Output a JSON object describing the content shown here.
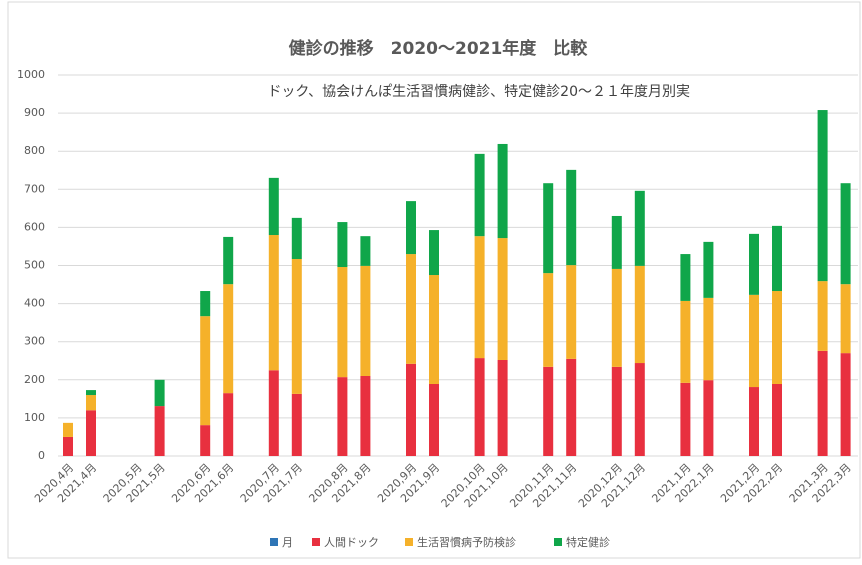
{
  "chart_data": {
    "type": "stacked_bar",
    "title": "健診の推移　2020～2021年度　比較",
    "subtitle": "ドック、協会けんぽ生活習慣病健診、特定健診20～２１年度月別実",
    "categories": [
      "2020,4月",
      "2021,4月",
      "2020,5月",
      "2021,5月",
      "2020,6月",
      "2021,6月",
      "2020,7月",
      "2021,7月",
      "2020,8月",
      "2021,8月",
      "2020,9月",
      "2021,9月",
      "2020,10月",
      "2021,10月",
      "2020,11月",
      "2021,11月",
      "2020,12月",
      "2021,12月",
      "2021,1月",
      "2022,1月",
      "2021,2月",
      "2022,2月",
      "2021,3月",
      "2022,3月"
    ],
    "series": [
      {
        "name": "月",
        "color": "#2e75b6",
        "values": [
          null,
          null,
          null,
          null,
          null,
          null,
          null,
          null,
          null,
          null,
          null,
          null,
          null,
          null,
          null,
          null,
          null,
          null,
          null,
          null,
          null,
          null,
          null,
          null
        ]
      },
      {
        "name": "人間ドック",
        "color": "#e8303f",
        "values": [
          50,
          120,
          0,
          131,
          81,
          165,
          225,
          163,
          207,
          210,
          242,
          189,
          257,
          252,
          234,
          255,
          234,
          244,
          192,
          199,
          181,
          189,
          276,
          270
        ]
      },
      {
        "name": "生活習慣病予防検診",
        "color": "#f5b12a",
        "values": [
          37,
          40,
          0,
          0,
          286,
          286,
          355,
          354,
          289,
          289,
          288,
          286,
          320,
          320,
          246,
          246,
          257,
          255,
          215,
          216,
          242,
          244,
          183,
          181
        ]
      },
      {
        "name": "特定健診",
        "color": "#10a64a",
        "values": [
          0,
          13,
          0,
          69,
          66,
          124,
          150,
          108,
          118,
          78,
          139,
          118,
          216,
          247,
          236,
          250,
          139,
          197,
          123,
          147,
          160,
          171,
          449,
          265
        ]
      }
    ],
    "ylim": [
      0,
      1000
    ],
    "yticks": [
      0,
      100,
      200,
      300,
      400,
      500,
      600,
      700,
      800,
      900,
      1000
    ],
    "grid": true,
    "legend": "bottom"
  }
}
